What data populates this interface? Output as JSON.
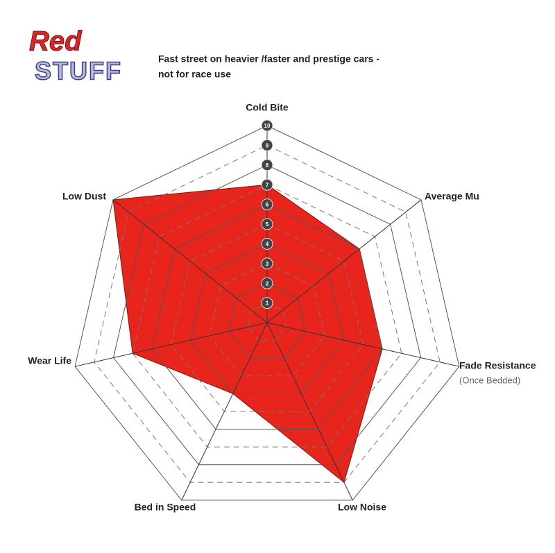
{
  "chart_data": {
    "type": "radar",
    "logo": [
      "Red",
      "STUFF"
    ],
    "subtitle": [
      "Fast street on heavier /faster and prestige cars -",
      "not for race use"
    ],
    "categories": [
      "Cold Bite",
      "Average Mu",
      "Fade Resistance",
      "Low Noise",
      "Bed in Speed",
      "Wear Life",
      "Low Dust"
    ],
    "category_note": "(Once Bedded)",
    "values": [
      7,
      6,
      6,
      9,
      4,
      7,
      10
    ],
    "color": "#e8251d",
    "rlim": [
      0,
      10
    ],
    "rticks": [
      1,
      2,
      3,
      4,
      5,
      6,
      7,
      8,
      9,
      10
    ],
    "grid": true
  }
}
